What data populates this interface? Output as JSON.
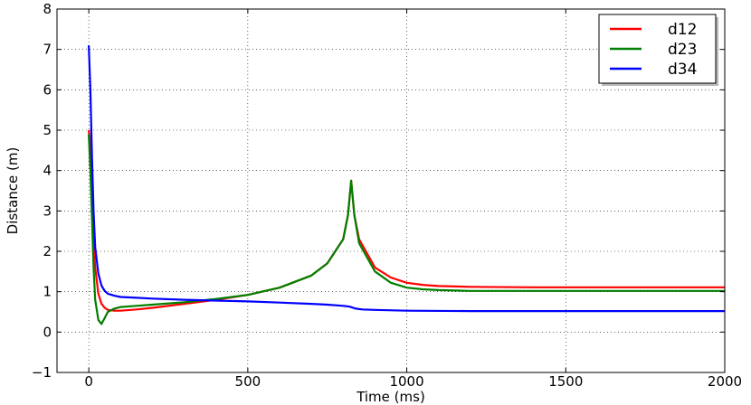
{
  "chart_data": {
    "type": "line",
    "title": "",
    "xlabel": "Time (ms)",
    "ylabel": "Distance (m)",
    "xlim": [
      -100,
      2000
    ],
    "ylim": [
      -1,
      8
    ],
    "xticks": [
      0,
      500,
      1000,
      1500,
      2000
    ],
    "xtick_labels": [
      "0",
      "500",
      "1000",
      "1500",
      "2000"
    ],
    "yticks": [
      -1,
      0,
      1,
      2,
      3,
      4,
      5,
      6,
      7,
      8
    ],
    "ytick_labels": [
      "−1",
      "0",
      "1",
      "2",
      "3",
      "4",
      "5",
      "6",
      "7",
      "8"
    ],
    "grid": true,
    "legend_position": "top-right",
    "series": [
      {
        "name": "d12",
        "color": "#ff0000",
        "x": [
          0,
          5,
          10,
          15,
          20,
          30,
          40,
          50,
          60,
          80,
          100,
          150,
          200,
          300,
          400,
          500,
          600,
          700,
          750,
          800,
          815,
          825,
          835,
          850,
          900,
          950,
          1000,
          1050,
          1100,
          1200,
          1400,
          1600,
          1800,
          2000
        ],
        "y": [
          5.0,
          4.6,
          3.4,
          2.3,
          1.6,
          0.95,
          0.7,
          0.6,
          0.55,
          0.53,
          0.53,
          0.56,
          0.6,
          0.7,
          0.8,
          0.92,
          1.1,
          1.4,
          1.7,
          2.3,
          2.9,
          3.75,
          2.9,
          2.3,
          1.6,
          1.35,
          1.22,
          1.17,
          1.14,
          1.12,
          1.11,
          1.11,
          1.11,
          1.11
        ]
      },
      {
        "name": "d23",
        "color": "#008000",
        "x": [
          0,
          5,
          10,
          15,
          20,
          30,
          40,
          50,
          60,
          80,
          100,
          150,
          200,
          300,
          400,
          500,
          600,
          700,
          750,
          800,
          815,
          825,
          835,
          850,
          900,
          950,
          1000,
          1050,
          1100,
          1200,
          1400,
          1600,
          1800,
          2000
        ],
        "y": [
          4.9,
          4.0,
          2.8,
          1.6,
          0.8,
          0.3,
          0.2,
          0.35,
          0.5,
          0.58,
          0.62,
          0.65,
          0.68,
          0.74,
          0.82,
          0.92,
          1.1,
          1.4,
          1.7,
          2.3,
          2.9,
          3.75,
          2.9,
          2.2,
          1.5,
          1.22,
          1.1,
          1.06,
          1.04,
          1.02,
          1.02,
          1.02,
          1.02,
          1.02
        ]
      },
      {
        "name": "d34",
        "color": "#0000ff",
        "x": [
          0,
          5,
          10,
          15,
          20,
          30,
          40,
          50,
          60,
          80,
          100,
          150,
          200,
          300,
          400,
          500,
          600,
          700,
          750,
          800,
          820,
          840,
          860,
          900,
          1000,
          1200,
          1500,
          2000
        ],
        "y": [
          7.1,
          6.0,
          4.3,
          3.0,
          2.1,
          1.45,
          1.15,
          1.02,
          0.95,
          0.9,
          0.87,
          0.85,
          0.83,
          0.8,
          0.78,
          0.76,
          0.73,
          0.7,
          0.68,
          0.65,
          0.63,
          0.58,
          0.56,
          0.55,
          0.53,
          0.52,
          0.52,
          0.52
        ]
      }
    ]
  }
}
